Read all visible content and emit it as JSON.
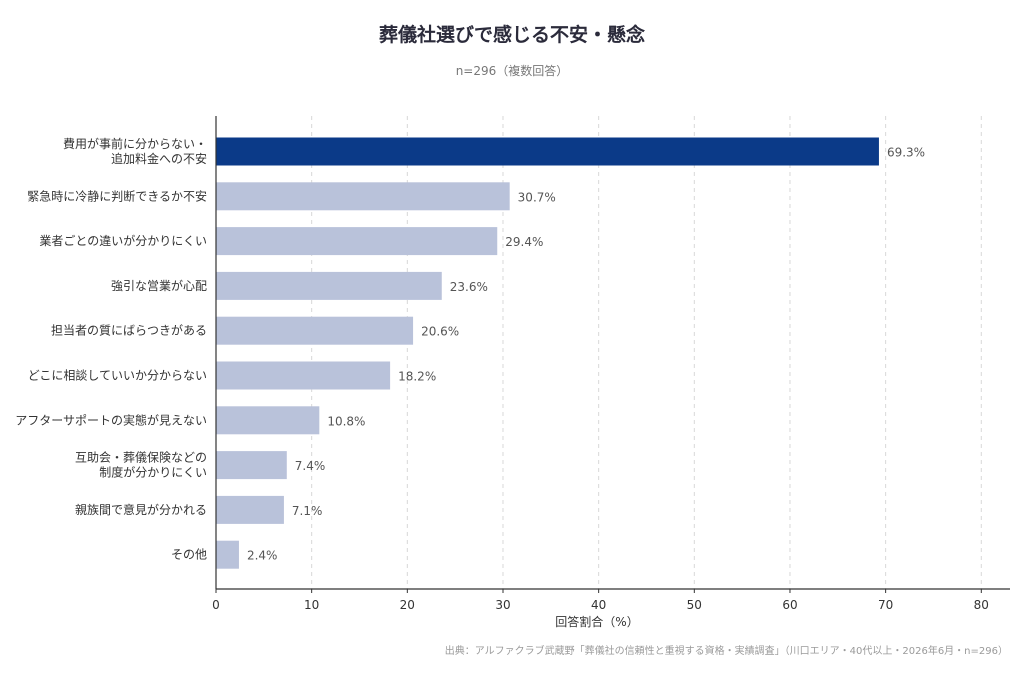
{
  "chart_data": {
    "type": "bar",
    "orientation": "horizontal",
    "title": "葬儀社選びで感じる不安・懸念",
    "subtitle": "n=296（複数回答）",
    "xlabel": "回答割合（%）",
    "ylabel": "",
    "xlim": [
      0,
      83
    ],
    "xticks": [
      0,
      10,
      20,
      30,
      40,
      50,
      60,
      70,
      80
    ],
    "categories": [
      [
        "費用が事前に分からない・",
        "追加料金への不安"
      ],
      [
        "緊急時に冷静に判断できるか不安"
      ],
      [
        "業者ごとの違いが分かりにくい"
      ],
      [
        "強引な営業が心配"
      ],
      [
        "担当者の質にばらつきがある"
      ],
      [
        "どこに相談していいか分からない"
      ],
      [
        "アフターサポートの実態が見えない"
      ],
      [
        "互助会・葬儀保険などの",
        "制度が分かりにくい"
      ],
      [
        "親族間で意見が分かれる"
      ],
      [
        "その他"
      ]
    ],
    "values": [
      69.3,
      30.7,
      29.4,
      23.6,
      20.6,
      18.2,
      10.8,
      7.4,
      7.1,
      2.4
    ],
    "value_labels": [
      "69.3%",
      "30.7%",
      "29.4%",
      "23.6%",
      "20.6%",
      "18.2%",
      "10.8%",
      "7.4%",
      "7.1%",
      "2.4%"
    ],
    "highlight_index": 0,
    "colors": {
      "highlight": "#0b3a88",
      "default": "#b9c2da",
      "grid": "#d8d8d8",
      "axis": "#333333"
    },
    "grid": "vertical-dashed",
    "legend": "none"
  },
  "source": "出典：アルファクラブ武蔵野「葬儀社の信頼性と重視する資格・実績調査」（川口エリア・40代以上・2026年6月・n=296）"
}
